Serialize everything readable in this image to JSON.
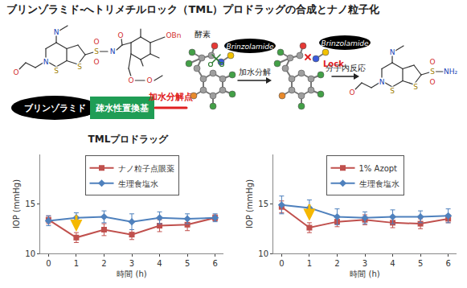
{
  "title": "ブリンゾラミド-へトリメチルロック（TML）プロドラッグの合成とナノ粒子化",
  "diagram": {
    "scheme": {
      "drug": "ブリンゾラミド",
      "substituent": "疎水性置換基",
      "cleavage_site": "加水分解点"
    },
    "left_structure_atoms": [
      "N",
      "O",
      "N",
      "S",
      "S",
      "S",
      "O",
      "O",
      "N",
      "O",
      "OBn",
      "O",
      "O"
    ],
    "right_structure_atoms": [
      "N",
      "O",
      "N",
      "S",
      "S",
      "S",
      "O",
      "O",
      "NH₂"
    ],
    "molecule_tag": "Brinzolamide",
    "enzyme": "酵素",
    "lock": "Lock",
    "steps": [
      "加水分解",
      "分子内反応"
    ]
  },
  "chart_data": [
    {
      "type": "line",
      "title": "TMLプロドラッグ",
      "x": [
        0,
        1,
        2,
        3,
        4,
        5,
        6
      ],
      "series": [
        {
          "name": "ナノ粒子点眼薬",
          "color": "#c0504d",
          "marker": "square",
          "line_style": "solid",
          "values": [
            13.4,
            11.6,
            12.4,
            11.9,
            12.8,
            12.9,
            13.6
          ],
          "errors": [
            0.4,
            0.5,
            0.6,
            0.5,
            0.6,
            0.6,
            0.3
          ]
        },
        {
          "name": "生理食塩水",
          "color": "#4f81bd",
          "marker": "diamond",
          "line_style": "solid",
          "values": [
            13.3,
            13.6,
            13.7,
            13.2,
            13.6,
            13.5,
            13.6
          ],
          "errors": [
            0.5,
            0.5,
            0.6,
            0.8,
            0.6,
            0.5,
            0.4
          ]
        }
      ],
      "xlabel": "時間 (h)",
      "ylabel": "IOP (mmHg)",
      "xlim": [
        -0.3,
        6.3
      ],
      "xticks": [
        0,
        1,
        2,
        3,
        4,
        5,
        6
      ],
      "ylim": [
        10,
        20
      ],
      "yticks": [
        10,
        15
      ],
      "grid": false,
      "legend": "top",
      "annotations": [
        {
          "x": 1,
          "y": 12.2,
          "marker": "arrow",
          "color": "#f5b800"
        }
      ]
    },
    {
      "type": "line",
      "x": [
        0,
        1,
        2,
        3,
        4,
        5,
        6
      ],
      "series": [
        {
          "name": "1% Azopt",
          "color": "#c0504d",
          "marker": "square",
          "line_style": "solid",
          "values": [
            14.7,
            12.6,
            13.2,
            13.4,
            13.1,
            13.0,
            13.5
          ],
          "errors": [
            0.6,
            0.5,
            0.5,
            0.5,
            0.5,
            0.5,
            0.4
          ]
        },
        {
          "name": "生理食塩水",
          "color": "#4f81bd",
          "marker": "diamond",
          "line_style": "solid",
          "values": [
            14.9,
            14.6,
            13.7,
            13.6,
            13.7,
            13.7,
            13.8
          ],
          "errors": [
            0.9,
            0.8,
            0.8,
            0.6,
            0.7,
            0.6,
            0.7
          ]
        }
      ],
      "xlabel": "時間 (h)",
      "ylabel": "IOP (mmHg)",
      "xlim": [
        -0.3,
        6.3
      ],
      "xticks": [
        0,
        1,
        2,
        3,
        4,
        5,
        6
      ],
      "ylim": [
        10,
        20
      ],
      "yticks": [
        10,
        15
      ],
      "grid": false,
      "legend": "top",
      "annotations": [
        {
          "x": 1,
          "y": 13.3,
          "marker": "arrow",
          "color": "#f5b800"
        }
      ]
    }
  ]
}
